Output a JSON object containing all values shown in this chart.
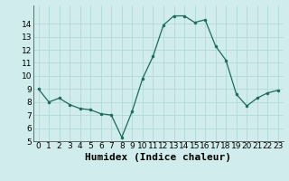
{
  "x": [
    0,
    1,
    2,
    3,
    4,
    5,
    6,
    7,
    8,
    9,
    10,
    11,
    12,
    13,
    14,
    15,
    16,
    17,
    18,
    19,
    20,
    21,
    22,
    23
  ],
  "y": [
    9.0,
    8.0,
    8.3,
    7.8,
    7.5,
    7.4,
    7.1,
    7.0,
    5.3,
    7.3,
    9.8,
    11.5,
    13.9,
    14.6,
    14.6,
    14.1,
    14.3,
    12.3,
    11.2,
    8.6,
    7.7,
    8.3,
    8.7,
    8.9
  ],
  "xlabel": "Humidex (Indice chaleur)",
  "ylim": [
    5,
    15
  ],
  "xlim": [
    -0.5,
    23.5
  ],
  "yticks": [
    5,
    6,
    7,
    8,
    9,
    10,
    11,
    12,
    13,
    14
  ],
  "xticks": [
    0,
    1,
    2,
    3,
    4,
    5,
    6,
    7,
    8,
    9,
    10,
    11,
    12,
    13,
    14,
    15,
    16,
    17,
    18,
    19,
    20,
    21,
    22,
    23
  ],
  "line_color": "#1a6b5a",
  "marker_color": "#1a6b5a",
  "bg_color": "#d0ecec",
  "grid_color": "#b0d8d8",
  "xlabel_fontsize": 8,
  "tick_fontsize": 6.5
}
